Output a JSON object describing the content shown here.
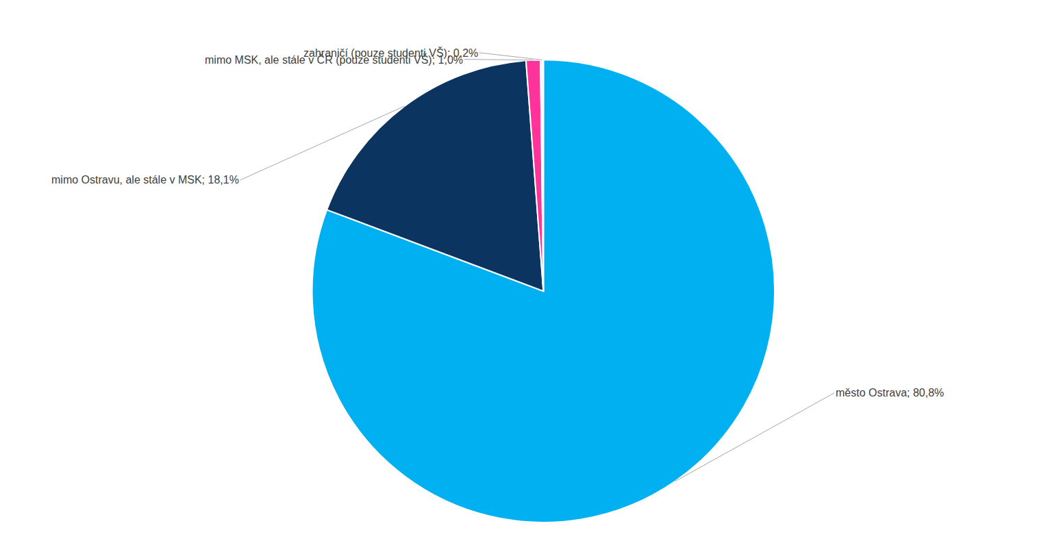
{
  "chart_data": {
    "type": "pie",
    "categories": [
      "město Ostrava",
      "mimo Ostravu, ale stále v MSK",
      "mimo MSK, ale stále v ČR (pouze studenti VŠ)",
      "zahraničí (pouze studenti VŠ)"
    ],
    "values": [
      80.8,
      18.1,
      1.0,
      0.2
    ],
    "value_labels": [
      "město Ostrava; 80,8%",
      "mimo Ostravu, ale stále v MSK; 18,1%",
      "mimo MSK, ale stále v ČR (pouze studenti VŠ); 1,0%",
      "zahraničí (pouze studenti VŠ); 0,2%"
    ],
    "colors": [
      "#00B0F0",
      "#0B3560",
      "#FF3399",
      "#F2F2F2"
    ],
    "data_labels": true
  }
}
